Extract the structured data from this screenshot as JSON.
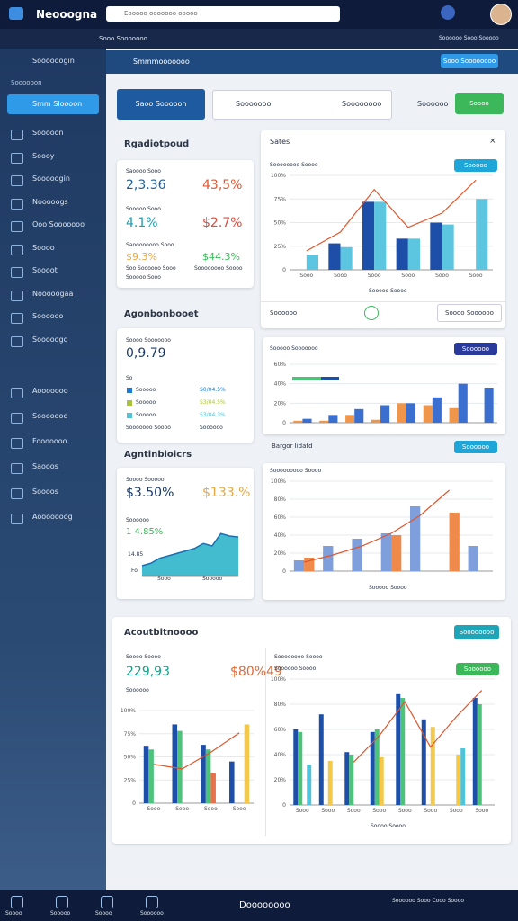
{
  "header": {
    "logo": "Neooogna",
    "search": "Eooooo ooooooo ooooo"
  },
  "toolbar": {
    "left": "Sooo Sooooooo",
    "right": "Soooooo Sooo Sooooo"
  },
  "sidebar": {
    "top": "Soooooogin",
    "section": "Soooooon",
    "active": "Smm Sloooon",
    "items": [
      "Sooooon",
      "Soooy",
      "Sooooogin",
      "Nooooogs",
      "Ooo Sooooooo",
      "Soooo",
      "Soooot",
      "Nooooogaa",
      "Soooooo",
      "Sooooogo"
    ],
    "items2": [
      "Aooooooo",
      "Sooooooo",
      "Fooooooo",
      "Saooos",
      "Soooos",
      "Aooooooog"
    ]
  },
  "topbar": {
    "title": "Smmmooooooo",
    "button": "Sooo Soooooooo"
  },
  "actions": {
    "primary": "Saoo Sooooon",
    "secondary": "Sooooooo",
    "secondary_right": "Soooooooo",
    "link": "Soooooo",
    "green": "Soooo"
  },
  "card1": {
    "title": "Rgadiotpoud",
    "l1": "Saoooo Sooo",
    "v1": "2,3.36",
    "v2": "43,5%",
    "l2": "Sooooo Sooo",
    "v3": "4.1%",
    "v4": "$2.7%",
    "l3": "Saoooooooo Sooo",
    "v5": "$9.3%",
    "v6": "$44.3%",
    "f1": "Soo Soooooo Sooo",
    "f2": "Soooooooo Soooo",
    "f3": "Sooooo Sooo"
  },
  "card2": {
    "title": "Agonbonbooet",
    "label": "Soooo Sooooooo",
    "value": "0,9.79",
    "head": "So",
    "rows": [
      [
        "Sooooo",
        "S0/04.5%"
      ],
      [
        "Sooooo",
        "S3/04.5%"
      ],
      [
        "Sooooo",
        "S3/04.3%"
      ],
      [
        "Sooooooo Soooo",
        "Soooooo"
      ]
    ]
  },
  "card3": {
    "title": "Agntinbioicrs",
    "label": "Soooo Sooooo",
    "v1": "$3.50%",
    "v2": "$133.%",
    "label2": "Soooooo",
    "v3": "1 4.85%",
    "tick": "14.85",
    "fo": "Fo",
    "x1": "Sooo",
    "x2": "Sooooo"
  },
  "panel1": {
    "title": "Sates",
    "sub": "Soooooooo Soooo",
    "button": "Sooooo",
    "axis": "Sooooo Soooo",
    "foot": "Soooooo",
    "foot_button": "Soooo Soooooo"
  },
  "panel2": {
    "sub": "Sooooo Sooooooo",
    "button": "Soooooo"
  },
  "panel3": {
    "title": "Bargor Iidatd",
    "button": "Soooooo",
    "sub": "Sooooooooo Soooo",
    "axis": "Sooooo Soooo"
  },
  "panel4": {
    "title": "Acoutbitnoooo",
    "button": "Soooooooo",
    "l1": "Soooo Soooo",
    "v1": "229,93",
    "v2": "$80%49",
    "l2": "Soooooo",
    "r1": "Soooooooo Soooo",
    "r2": "Soooooo Soooo",
    "r_button": "Soooooo",
    "axis": "Soooo Soooo"
  },
  "charts": [
    {
      "type": "bar",
      "ylim": [
        0,
        100
      ],
      "yticks": [
        0,
        {
          "value": 25,
          "label": "25%"
        },
        {
          "value": 50,
          "label": "50%"
        },
        {
          "value": 75,
          "label": "75%"
        },
        {
          "value": 100,
          "label": "100%"
        }
      ],
      "categories": [
        "Sooo",
        "Sooo",
        "Sooo",
        "Sooo",
        "Sooo",
        "Sooo"
      ],
      "series": [
        {
          "color": "#1e4fa8",
          "values": [
            null,
            28,
            72,
            33,
            50,
            null
          ]
        },
        {
          "color": "#5cc6e0",
          "values": [
            16,
            24,
            72,
            33,
            48,
            75
          ]
        },
        {
          "type": "line",
          "color": "#e0552b",
          "values": [
            20,
            40,
            85,
            45,
            60,
            95
          ]
        }
      ]
    },
    {
      "type": "bar",
      "ylim": [
        0,
        60
      ],
      "yticks": [
        0,
        {
          "value": 20,
          "label": "20%"
        },
        {
          "value": 40,
          "label": "40%"
        },
        {
          "value": 60,
          "label": "60%"
        }
      ],
      "categories": [
        null,
        null,
        null,
        null,
        null,
        null,
        null,
        null
      ],
      "series": [
        {
          "color": "#f0964a",
          "values": [
            2,
            2,
            8,
            3,
            20,
            18,
            15,
            null
          ]
        },
        {
          "color": "#3a6fd0",
          "values": [
            4,
            8,
            14,
            18,
            20,
            26,
            40,
            36
          ]
        }
      ]
    },
    {
      "type": "bar",
      "ylim": [
        0,
        100
      ],
      "yticks": [
        0,
        {
          "value": 20,
          "label": "20%"
        },
        {
          "value": 40,
          "label": "40%"
        },
        {
          "value": 60,
          "label": "60%"
        },
        {
          "value": 80,
          "label": "80%"
        },
        {
          "value": 100,
          "label": "100%"
        }
      ],
      "categories": [
        null,
        null,
        null,
        null,
        null,
        null,
        null
      ],
      "series": [
        {
          "color": "#7f9fdc",
          "values": [
            12,
            28,
            36,
            42,
            72,
            null,
            28
          ]
        },
        {
          "color": "#f08a4b",
          "values": [
            15,
            null,
            null,
            40,
            null,
            65,
            null
          ]
        },
        {
          "type": "line",
          "color": "#e0552b",
          "values": [
            10,
            18,
            28,
            42,
            62,
            90,
            null
          ]
        }
      ]
    },
    {
      "type": "area",
      "ylim": [
        0,
        100
      ],
      "series": [
        {
          "color": "#22b0c8",
          "values": [
            20,
            25,
            35,
            40,
            45,
            50,
            55,
            65,
            60,
            85,
            80,
            78
          ]
        }
      ]
    },
    {
      "type": "bar",
      "ylim": [
        0,
        100
      ],
      "yticks": [
        0,
        {
          "value": 25,
          "label": "25%"
        },
        {
          "value": 50,
          "label": "50%"
        },
        {
          "value": 75,
          "label": "75%"
        },
        {
          "value": 100,
          "label": "100%"
        }
      ],
      "categories": [
        "Sooo",
        "Sooo",
        "Sooo",
        "Sooo"
      ],
      "series": [
        {
          "color": "#1e4fa8",
          "values": [
            62,
            85,
            63,
            45
          ]
        },
        {
          "color": "#4cc27a",
          "values": [
            58,
            78,
            58,
            null
          ]
        },
        {
          "color": "#e8704a",
          "values": [
            null,
            null,
            33,
            null
          ]
        },
        {
          "color": "#f2c94c",
          "values": [
            null,
            null,
            null,
            85
          ]
        },
        {
          "type": "line",
          "color": "#e0552b",
          "values": [
            42,
            37,
            55,
            76
          ]
        }
      ]
    },
    {
      "type": "bar",
      "ylim": [
        0,
        100
      ],
      "yticks": [
        0,
        {
          "value": 20,
          "label": "20%"
        },
        {
          "value": 40,
          "label": "40%"
        },
        {
          "value": 60,
          "label": "60%"
        },
        {
          "value": 80,
          "label": "80%"
        },
        {
          "value": 100,
          "label": "100%"
        }
      ],
      "categories": [
        "Sooo",
        "Sooo",
        "Sooo",
        "Sooo",
        "Sooo",
        "Sooo",
        "Sooo",
        "Sooo"
      ],
      "series": [
        {
          "color": "#1e4fa8",
          "values": [
            60,
            72,
            42,
            58,
            88,
            68,
            null,
            85
          ]
        },
        {
          "color": "#4cc27a",
          "values": [
            58,
            null,
            40,
            60,
            85,
            null,
            null,
            80
          ]
        },
        {
          "color": "#f2c94c",
          "values": [
            null,
            35,
            null,
            38,
            null,
            62,
            40,
            null
          ]
        },
        {
          "color": "#4fc3d9",
          "values": [
            32,
            null,
            null,
            null,
            null,
            null,
            45,
            null
          ]
        },
        {
          "type": "line",
          "color": "#e0552b",
          "values": [
            null,
            null,
            34,
            55,
            82,
            46,
            70,
            91
          ]
        }
      ]
    }
  ],
  "bottom_nav": {
    "items": [
      "Soooo",
      "Sooooo",
      "Soooo",
      "Soooooo"
    ],
    "center": "Doooooooo",
    "right": "Soooooo Sooo Cooo Soooo"
  }
}
